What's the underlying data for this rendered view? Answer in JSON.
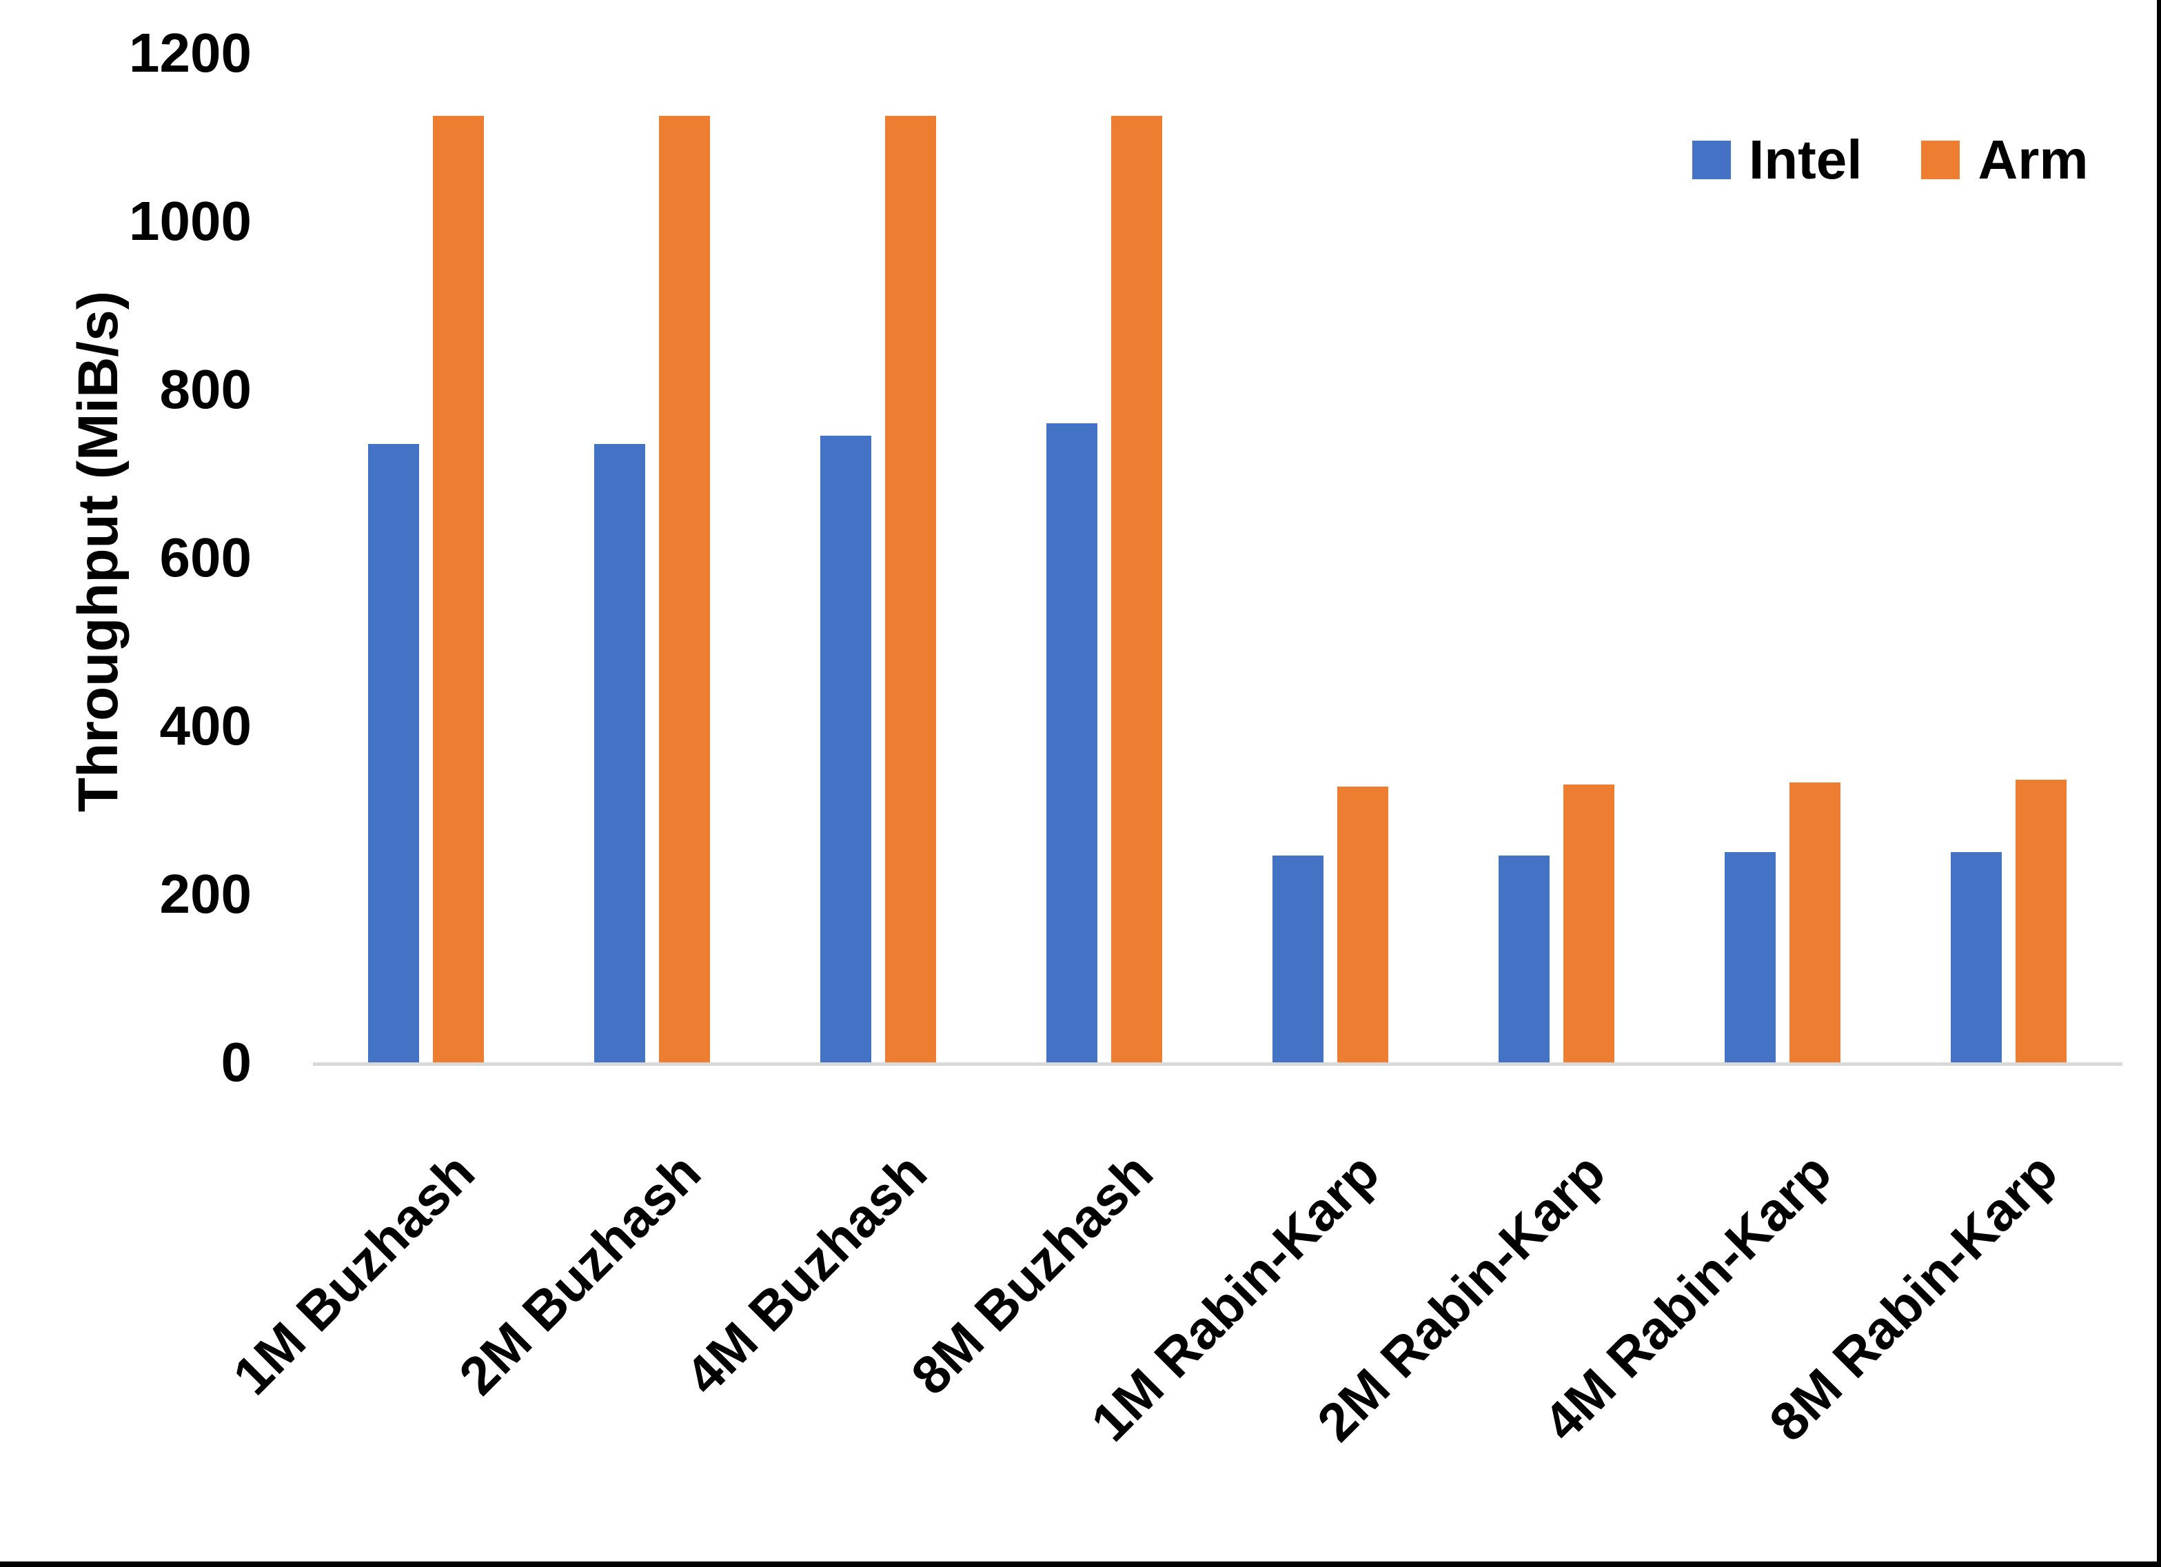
{
  "chart_data": {
    "type": "bar",
    "title": "",
    "ylabel": "Throughput (MiB/s)",
    "xlabel": "",
    "categories": [
      "1M Buzhash",
      "2M Buzhash",
      "4M Buzhash",
      "8M Buzhash",
      "1M Rabin-Karp",
      "2M Rabin-Karp",
      "4M Rabin-Karp",
      "8M Rabin-Karp"
    ],
    "series": [
      {
        "name": "Intel",
        "color": "#4472C4",
        "values": [
          735,
          735,
          745,
          760,
          246,
          246,
          250,
          250
        ]
      },
      {
        "name": "Arm",
        "color": "#ED7D31",
        "values": [
          1125,
          1125,
          1125,
          1125,
          328,
          330,
          333,
          336
        ]
      }
    ],
    "ylim": [
      0,
      1200
    ],
    "yticks": [
      0,
      200,
      400,
      600,
      800,
      1000,
      1200
    ],
    "grid": "off",
    "legend_position": "top-right",
    "axis_line_color": "#D9D9D9",
    "text_color": "#000000"
  }
}
